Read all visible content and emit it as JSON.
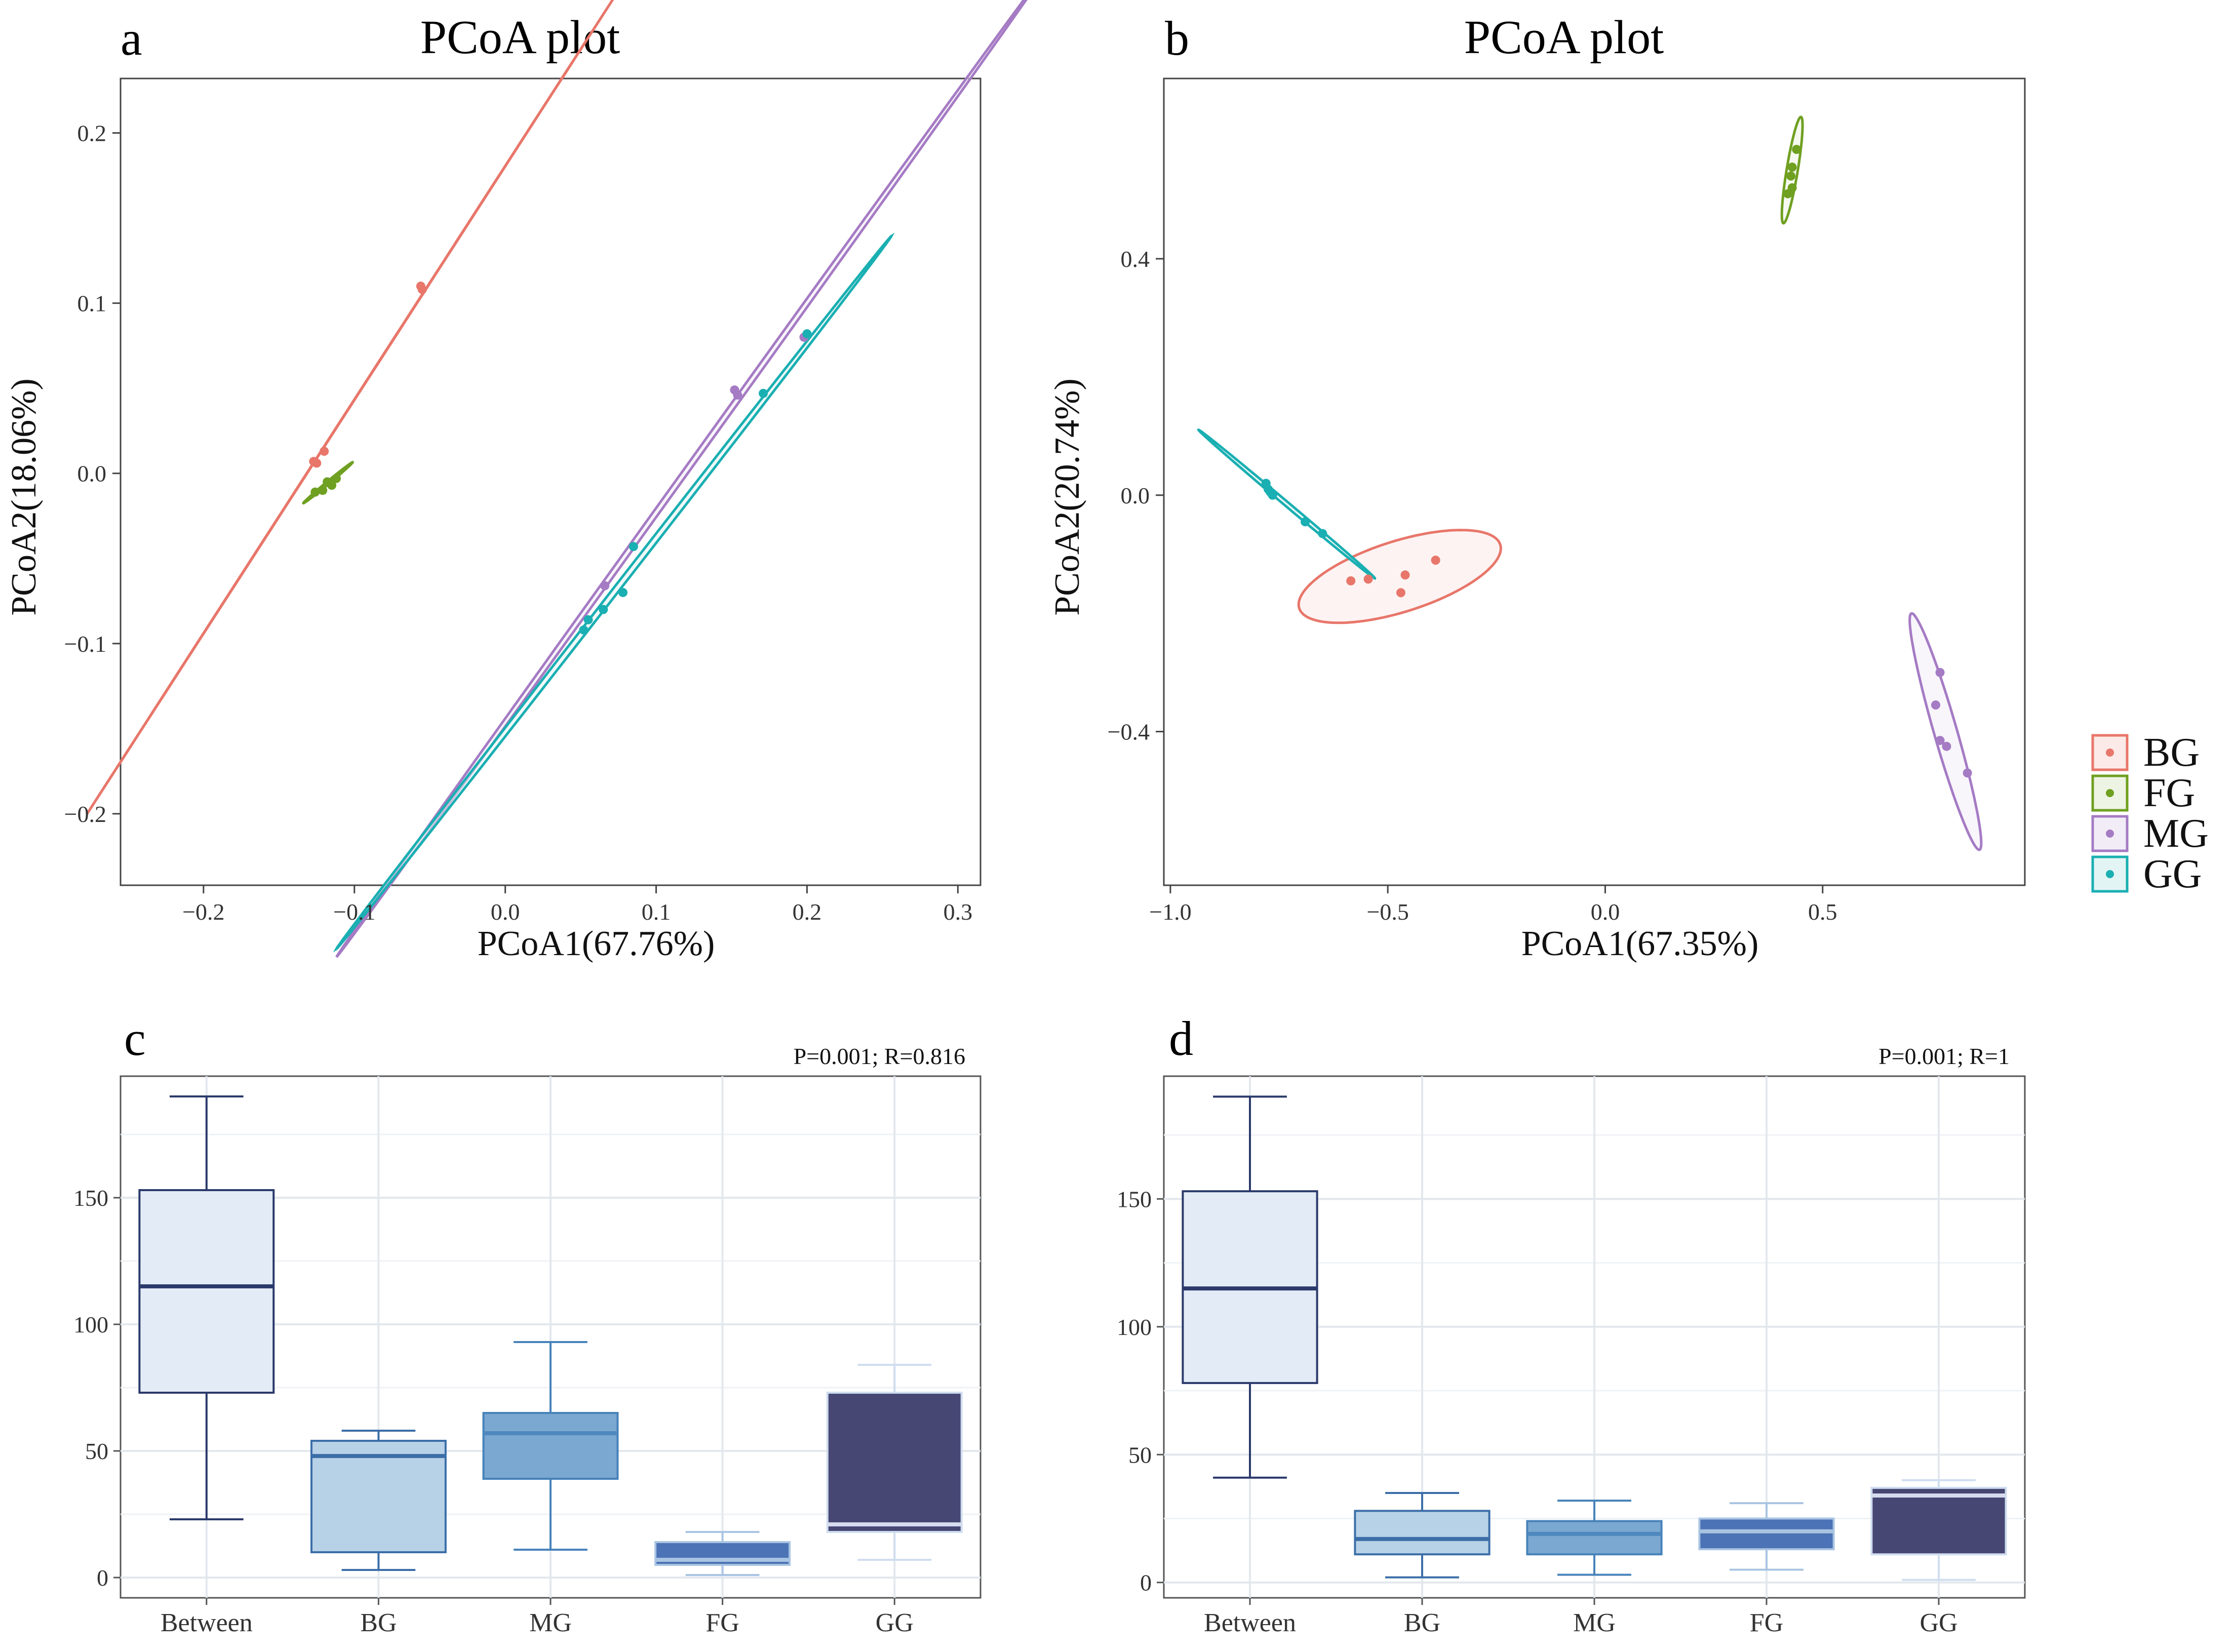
{
  "chart_data": [
    {
      "panel": "a",
      "type": "scatter",
      "title": "PCoA plot",
      "xlabel": "PCoA1(67.76%)",
      "ylabel": "PCoA2(18.06%)",
      "xlim": [
        -0.255,
        0.315
      ],
      "ylim": [
        -0.242,
        0.232
      ],
      "xticks": [
        -0.2,
        -0.1,
        0.0,
        0.1,
        0.2,
        0.3
      ],
      "xtick_labels": [
        "−0.2",
        "−0.1",
        "0.0",
        "0.1",
        "0.2",
        "0.3"
      ],
      "yticks": [
        -0.2,
        -0.1,
        0.0,
        0.1,
        0.2
      ],
      "ytick_labels": [
        "−0.2",
        "−0.1",
        "0.0",
        "0.1",
        "0.2"
      ],
      "grid": false,
      "series": [
        {
          "name": "BG",
          "color": "#E8766A",
          "points": [
            [
              -0.055,
              0.108
            ],
            [
              -0.056,
              0.11
            ],
            [
              -0.12,
              0.013
            ],
            [
              -0.127,
              0.007
            ],
            [
              -0.125,
              0.006
            ]
          ],
          "ellipse": [
            [
              -0.227,
              -0.131
            ],
            [
              0.023,
              0.212
            ],
            [
              -0.226,
              -0.128
            ],
            [
              0.02,
              0.21
            ]
          ]
        },
        {
          "name": "FG",
          "color": "#6FA021",
          "points": [
            [
              -0.118,
              -0.005
            ],
            [
              -0.112,
              -0.003
            ],
            [
              -0.121,
              -0.01
            ],
            [
              -0.115,
              -0.007
            ],
            [
              -0.126,
              -0.011
            ],
            [
              -0.116,
              -0.006
            ]
          ],
          "ellipse": [
            [
              -0.13,
              -0.014
            ],
            [
              -0.105,
              0.003
            ],
            [
              -0.128,
              -0.017
            ],
            [
              -0.107,
              0.0
            ]
          ]
        },
        {
          "name": "MG",
          "color": "#A57BC4",
          "points": [
            [
              0.152,
              0.049
            ],
            [
              0.154,
              0.046
            ],
            [
              0.066,
              -0.066
            ],
            [
              0.198,
              0.08
            ]
          ],
          "ellipse": [
            [
              -0.042,
              -0.2
            ],
            [
              0.29,
              0.213
            ],
            [
              -0.043,
              -0.198
            ],
            [
              0.292,
              0.211
            ]
          ]
        },
        {
          "name": "GG",
          "color": "#1AAFB2",
          "points": [
            [
              0.085,
              -0.043
            ],
            [
              0.078,
              -0.07
            ],
            [
              0.065,
              -0.08
            ],
            [
              0.055,
              -0.086
            ],
            [
              0.052,
              -0.092
            ],
            [
              0.171,
              0.047
            ],
            [
              0.2,
              0.082
            ]
          ],
          "ellipse": [
            [
              -0.058,
              -0.22
            ],
            [
              0.202,
              0.08
            ],
            [
              -0.061,
              -0.215
            ],
            [
              0.199,
              0.077
            ]
          ]
        }
      ]
    },
    {
      "panel": "b",
      "type": "scatter",
      "title": "PCoA plot",
      "xlabel": "PCoA1(67.35%)",
      "ylabel": "PCoA2(20.74%)",
      "xlim": [
        -1.015,
        0.965
      ],
      "ylim": [
        -0.66,
        0.705
      ],
      "xticks": [
        -1.0,
        -0.5,
        0.0,
        0.5
      ],
      "xtick_labels": [
        "−1.0",
        "−0.5",
        "0.0",
        "0.5"
      ],
      "yticks": [
        -0.4,
        0.0,
        0.4
      ],
      "ytick_labels": [
        "−0.4",
        "0.0",
        "0.4"
      ],
      "grid": false,
      "series": [
        {
          "name": "BG",
          "color": "#E8766A",
          "points": [
            [
              -0.39,
              -0.11
            ],
            [
              -0.46,
              -0.135
            ],
            [
              -0.47,
              -0.165
            ],
            [
              -0.545,
              -0.142
            ],
            [
              -0.585,
              -0.145
            ]
          ],
          "ellipse": [
            [
              -0.705,
              -0.185
            ],
            [
              -0.24,
              -0.09
            ],
            [
              -0.47,
              -0.075
            ],
            [
              -0.47,
              -0.2
            ]
          ]
        },
        {
          "name": "FG",
          "color": "#6FA021",
          "points": [
            [
              0.44,
              0.585
            ],
            [
              0.43,
              0.555
            ],
            [
              0.427,
              0.54
            ],
            [
              0.42,
              0.51
            ],
            [
              0.43,
              0.52
            ]
          ],
          "ellipse": [
            [
              0.41,
              0.46
            ],
            [
              0.45,
              0.64
            ],
            [
              0.443,
              0.55
            ],
            [
              0.417,
              0.55
            ]
          ]
        },
        {
          "name": "MG",
          "color": "#A57BC4",
          "points": [
            [
              0.77,
              -0.3
            ],
            [
              0.76,
              -0.355
            ],
            [
              0.77,
              -0.415
            ],
            [
              0.785,
              -0.425
            ],
            [
              0.833,
              -0.47
            ]
          ],
          "ellipse": [
            [
              0.705,
              -0.2
            ],
            [
              0.86,
              -0.6
            ],
            [
              0.81,
              -0.4
            ],
            [
              0.755,
              -0.4
            ]
          ]
        },
        {
          "name": "GG",
          "color": "#1AAFB2",
          "points": [
            [
              -0.78,
              0.02
            ],
            [
              -0.775,
              0.01
            ],
            [
              -0.77,
              0.005
            ],
            [
              -0.765,
              0.0
            ],
            [
              -0.69,
              -0.045
            ],
            [
              -0.65,
              -0.065
            ]
          ],
          "ellipse": [
            [
              -0.935,
              0.11
            ],
            [
              -0.53,
              -0.14
            ],
            [
              -0.72,
              -0.025
            ],
            [
              -0.745,
              0.0
            ]
          ]
        }
      ]
    },
    {
      "panel": "c",
      "type": "box",
      "stat_label": "P=0.001; R=0.816",
      "categories": [
        "Between",
        "BG",
        "MG",
        "FG",
        "GG"
      ],
      "ylim": [
        -8,
        198
      ],
      "yticks": [
        0,
        50,
        100,
        150
      ],
      "ytick_labels": [
        "0",
        "50",
        "100",
        "150"
      ],
      "grid": true,
      "boxes": [
        {
          "min": 23,
          "q1": 73,
          "median": 115,
          "q3": 153,
          "max": 190,
          "fill": "#E3ECF6",
          "line": "#2B3A6B",
          "median_color": "#2B3A6B"
        },
        {
          "min": 3,
          "q1": 10,
          "median": 48,
          "q3": 54,
          "max": 58,
          "fill": "#B7D1E6",
          "line": "#3C6EA8",
          "median_color": "#3C6EA8"
        },
        {
          "min": 11,
          "q1": 39,
          "median": 57,
          "q3": 65,
          "max": 93,
          "fill": "#7AA8D0",
          "line": "#4782BA",
          "median_color": "#4E88BE"
        },
        {
          "min": 1,
          "q1": 5,
          "median": 7,
          "q3": 14,
          "max": 18,
          "fill": "#4C73B5",
          "line": "#A9C4E2",
          "median_color": "#A9C4E2"
        },
        {
          "min": 7,
          "q1": 18,
          "median": 21,
          "q3": 73,
          "max": 84,
          "fill": "#474774",
          "line": "#CFDDEF",
          "median_color": "#D6DCEE"
        }
      ]
    },
    {
      "panel": "d",
      "type": "box",
      "stat_label": "P=0.001; R=1",
      "categories": [
        "Between",
        "BG",
        "MG",
        "FG",
        "GG"
      ],
      "ylim": [
        -6,
        198
      ],
      "yticks": [
        0,
        50,
        100,
        150
      ],
      "ytick_labels": [
        "0",
        "50",
        "100",
        "150"
      ],
      "grid": true,
      "boxes": [
        {
          "min": 41,
          "q1": 78,
          "median": 115,
          "q3": 153,
          "max": 190,
          "fill": "#E3ECF6",
          "line": "#2B3A6B",
          "median_color": "#2B3A6B"
        },
        {
          "min": 2,
          "q1": 11,
          "median": 17,
          "q3": 28,
          "max": 35,
          "fill": "#B7D1E6",
          "line": "#3C6EA8",
          "median_color": "#3C6EA8"
        },
        {
          "min": 3,
          "q1": 11,
          "median": 19,
          "q3": 24,
          "max": 32,
          "fill": "#7AA8D0",
          "line": "#4782BA",
          "median_color": "#4E88BE"
        },
        {
          "min": 5,
          "q1": 13,
          "median": 20,
          "q3": 25,
          "max": 31,
          "fill": "#4C73B5",
          "line": "#A9C4E2",
          "median_color": "#A9C4E2"
        },
        {
          "min": 1,
          "q1": 11,
          "median": 34,
          "q3": 37,
          "max": 40,
          "fill": "#474774",
          "line": "#CFDDEF",
          "median_color": "#D6DCEE"
        }
      ]
    }
  ],
  "legend": {
    "items": [
      {
        "label": "BG",
        "color": "#E8766A",
        "fill": "#FBEAE7"
      },
      {
        "label": "FG",
        "color": "#6FA021",
        "fill": "#EEF4E4"
      },
      {
        "label": "MG",
        "color": "#A57BC4",
        "fill": "#F2ECF7"
      },
      {
        "label": "GG",
        "color": "#1AAFB2",
        "fill": "#E3F4F4"
      }
    ]
  },
  "panel_labels": [
    "a",
    "b",
    "c",
    "d"
  ]
}
